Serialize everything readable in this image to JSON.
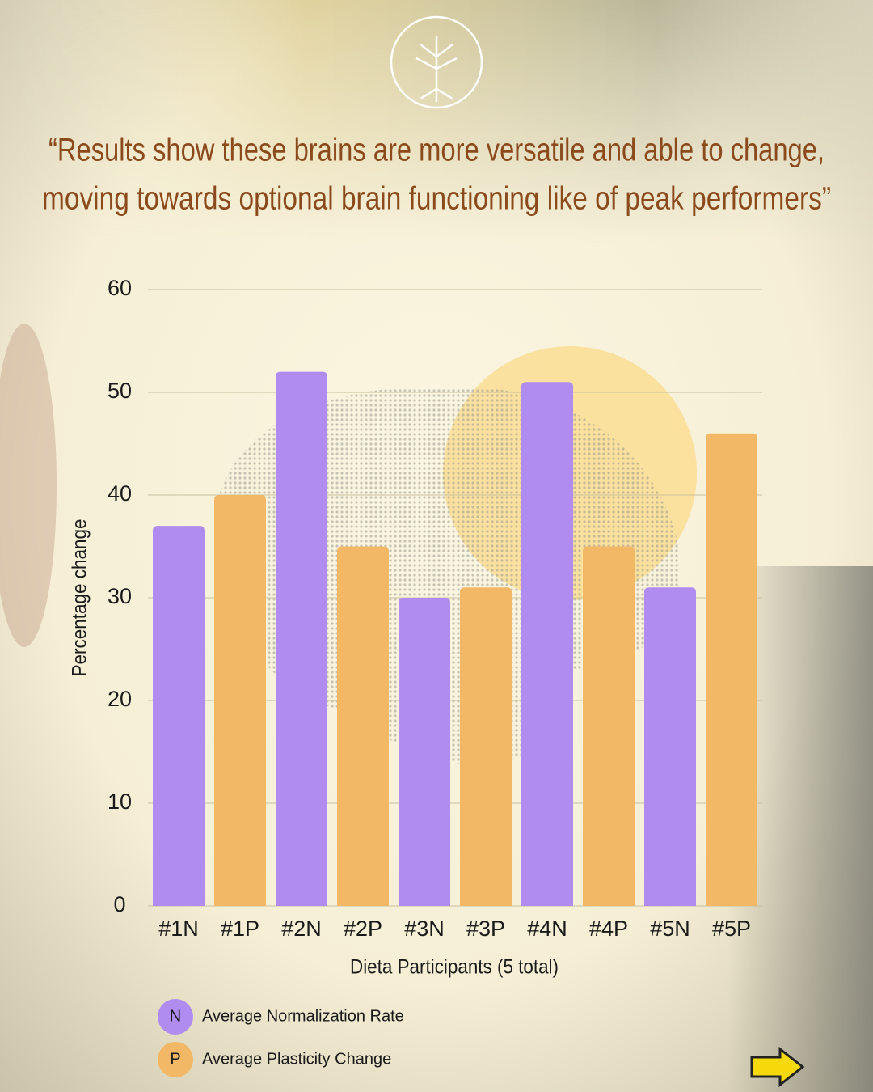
{
  "chart_data": {
    "type": "bar",
    "title": [
      "“Results show these brains are more versatile and able to change,",
      "moving towards optional brain functioning like of peak performers”"
    ],
    "x_label": "Dieta Participants (5 total)",
    "y_label": "Percentage change",
    "categories": [
      "#1N",
      "#1P",
      "#2N",
      "#2P",
      "#3N",
      "#3P",
      "#4N",
      "#4P",
      "#5N",
      "#5P"
    ],
    "series": [
      {
        "name": "Average Normalization Rate",
        "symbol": "N",
        "color": "#b08cf0",
        "values": [
          37,
          null,
          52,
          null,
          30,
          null,
          51,
          null,
          31,
          null
        ]
      },
      {
        "name": "Average Plasticity Change",
        "symbol": "P",
        "color": "#f2b866",
        "values": [
          null,
          40,
          null,
          35,
          null,
          31,
          null,
          35,
          null,
          46
        ]
      }
    ],
    "ylim": [
      0,
      60
    ],
    "yticks": [
      0,
      10,
      20,
      30,
      40,
      50,
      60
    ],
    "grid": true
  }
}
